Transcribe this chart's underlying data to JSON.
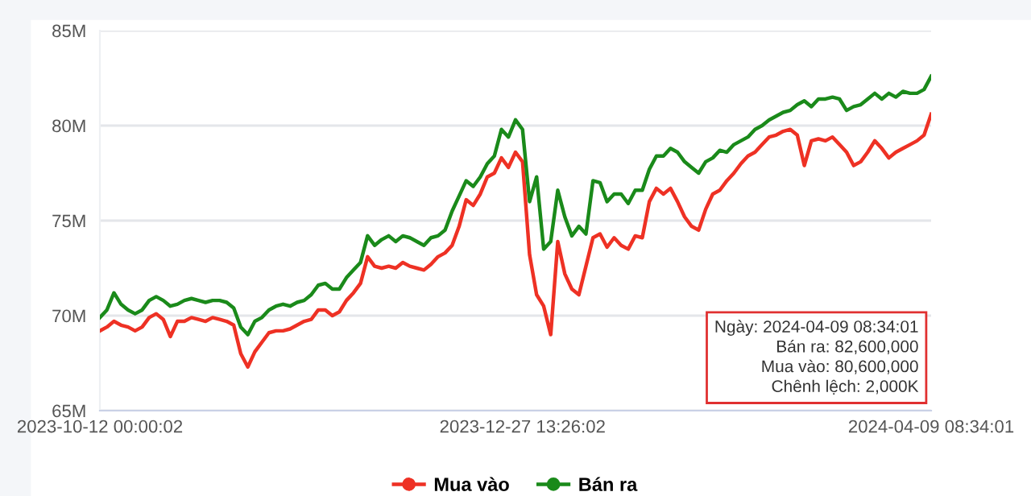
{
  "chart_data": {
    "type": "line",
    "categories": [
      "2023-10-12 00:00:02",
      null,
      null,
      null,
      null,
      null,
      null,
      null,
      null,
      null,
      null,
      null,
      null,
      null,
      null,
      null,
      null,
      null,
      null,
      null,
      null,
      null,
      null,
      null,
      null,
      null,
      null,
      null,
      null,
      null,
      null,
      null,
      null,
      null,
      null,
      null,
      null,
      null,
      null,
      null,
      null,
      null,
      null,
      null,
      null,
      null,
      null,
      null,
      null,
      null,
      null,
      null,
      null,
      null,
      null,
      null,
      null,
      null,
      null,
      null,
      "2023-12-27 13:26:02",
      null,
      null,
      null,
      null,
      null,
      null,
      null,
      null,
      null,
      null,
      null,
      null,
      null,
      null,
      null,
      null,
      null,
      null,
      null,
      null,
      null,
      null,
      null,
      null,
      null,
      null,
      null,
      null,
      null,
      null,
      null,
      null,
      null,
      null,
      null,
      null,
      null,
      null,
      null,
      null,
      null,
      null,
      null,
      null,
      null,
      null,
      null,
      null,
      null,
      null,
      null,
      null,
      null,
      null,
      null,
      null,
      null,
      "2024-04-09 08:34:01"
    ],
    "series": [
      {
        "name": "Mua vào",
        "color": "#ee3124",
        "values": [
          69.2,
          69.4,
          69.7,
          69.5,
          69.4,
          69.2,
          69.4,
          69.9,
          70.1,
          69.8,
          68.9,
          69.7,
          69.7,
          69.9,
          69.8,
          69.7,
          69.9,
          69.8,
          69.7,
          69.5,
          68.0,
          67.3,
          68.1,
          68.6,
          69.1,
          69.2,
          69.2,
          69.3,
          69.5,
          69.7,
          69.8,
          70.3,
          70.3,
          70.0,
          70.2,
          70.8,
          71.2,
          71.7,
          73.1,
          72.6,
          72.5,
          72.6,
          72.5,
          72.8,
          72.6,
          72.5,
          72.4,
          72.7,
          73.1,
          73.3,
          73.7,
          74.7,
          76.1,
          75.8,
          76.4,
          77.3,
          77.5,
          78.3,
          77.8,
          78.6,
          78.1,
          73.2,
          71.1,
          70.5,
          69.0,
          73.9,
          72.2,
          71.4,
          71.1,
          72.6,
          74.1,
          74.3,
          73.6,
          74.1,
          73.7,
          73.5,
          74.2,
          74.1,
          76.0,
          76.7,
          76.4,
          76.7,
          76.0,
          75.2,
          74.7,
          74.5,
          75.6,
          76.4,
          76.6,
          77.1,
          77.5,
          78.0,
          78.4,
          78.6,
          79.0,
          79.4,
          79.5,
          79.7,
          79.8,
          79.5,
          77.9,
          79.2,
          79.3,
          79.2,
          79.4,
          79.0,
          78.6,
          77.9,
          78.1,
          78.6,
          79.2,
          78.8,
          78.3,
          78.6,
          78.8,
          79.0,
          79.2,
          79.5,
          80.6
        ]
      },
      {
        "name": "Bán ra",
        "color": "#1a8a1a",
        "values": [
          69.9,
          70.3,
          71.2,
          70.6,
          70.3,
          70.1,
          70.3,
          70.8,
          71.0,
          70.8,
          70.5,
          70.6,
          70.8,
          70.9,
          70.8,
          70.7,
          70.8,
          70.8,
          70.7,
          70.4,
          69.4,
          69.0,
          69.7,
          69.9,
          70.3,
          70.5,
          70.6,
          70.5,
          70.7,
          70.8,
          71.1,
          71.6,
          71.7,
          71.4,
          71.4,
          72.0,
          72.4,
          72.8,
          74.2,
          73.7,
          74.0,
          74.2,
          73.9,
          74.2,
          74.1,
          73.9,
          73.7,
          74.1,
          74.2,
          74.5,
          75.5,
          76.3,
          77.1,
          76.8,
          77.3,
          78.0,
          78.4,
          79.8,
          79.4,
          80.3,
          79.8,
          76.0,
          77.3,
          73.5,
          73.9,
          76.6,
          75.2,
          74.2,
          74.7,
          74.3,
          77.1,
          77.0,
          76.0,
          76.4,
          76.4,
          75.9,
          76.6,
          76.6,
          77.7,
          78.4,
          78.4,
          78.8,
          78.6,
          78.1,
          77.8,
          77.5,
          78.1,
          78.3,
          78.7,
          78.6,
          79.0,
          79.2,
          79.4,
          79.8,
          80.0,
          80.3,
          80.5,
          80.7,
          80.8,
          81.1,
          81.3,
          81.0,
          81.4,
          81.4,
          81.5,
          81.4,
          80.8,
          81.0,
          81.1,
          81.4,
          81.7,
          81.4,
          81.7,
          81.5,
          81.8,
          81.7,
          81.7,
          81.9,
          82.6
        ]
      }
    ],
    "ylim": [
      65,
      85
    ],
    "yticks": [
      {
        "value": 65,
        "label": "65M"
      },
      {
        "value": 70,
        "label": "70M"
      },
      {
        "value": 75,
        "label": "75M"
      },
      {
        "value": 80,
        "label": "80M"
      },
      {
        "value": 85,
        "label": "85M"
      }
    ],
    "grid": "y",
    "legend": "bottom",
    "annotations": [
      "Ngày: 2024-04-09 08:34:01",
      "Bán ra: 82,600,000",
      "Mua vào: 80,600,000",
      "Chênh lệch: 2,000K"
    ]
  }
}
